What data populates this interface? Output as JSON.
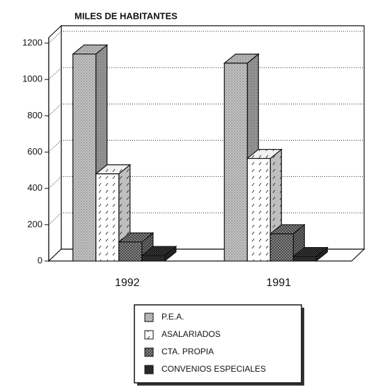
{
  "chart_data": {
    "type": "bar3d",
    "title": "MILES DE HABITANTES",
    "categories": [
      "1992",
      "1991"
    ],
    "series": [
      {
        "name": "P.E.A.",
        "color": "#c4c4c4",
        "values": [
          1140,
          1090
        ]
      },
      {
        "name": "ASALARIADOS",
        "color": "#ffffff",
        "values": [
          480,
          565
        ]
      },
      {
        "name": "CTA. PROPIA",
        "color": "#9a9a9a",
        "values": [
          105,
          150
        ]
      },
      {
        "name": "CONVENIOS ESPECIALES",
        "color": "#555555",
        "values": [
          30,
          25
        ]
      }
    ],
    "ylim": [
      0,
      1200
    ],
    "yticks": [
      0,
      200,
      400,
      600,
      800,
      1000,
      1200
    ],
    "grid": true
  }
}
